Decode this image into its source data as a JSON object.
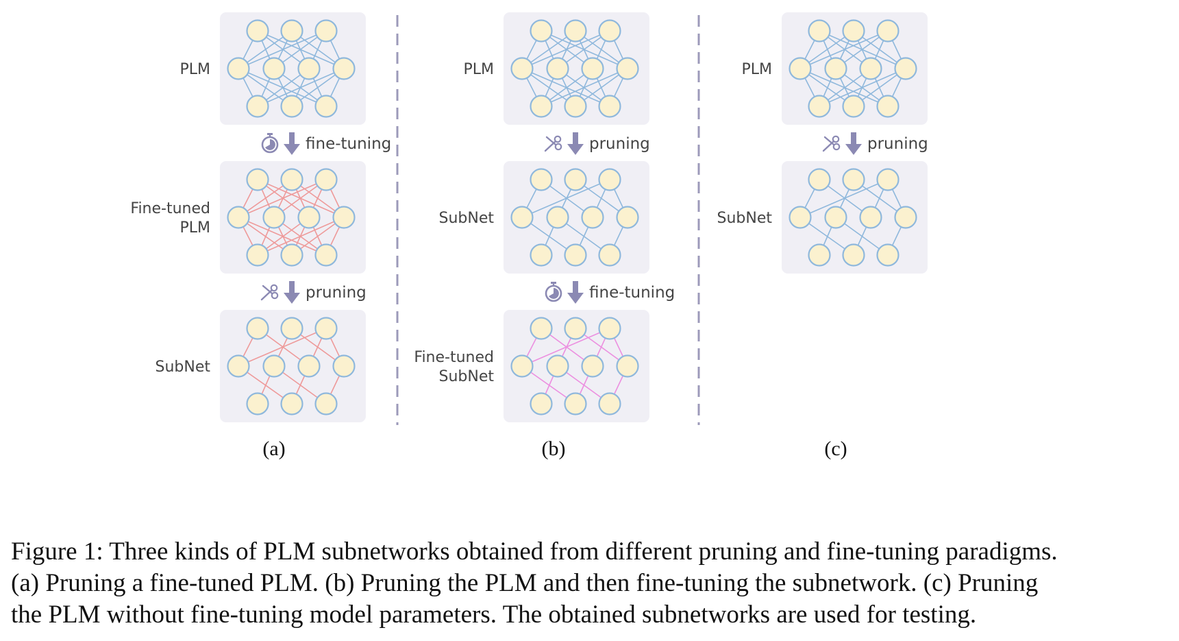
{
  "figure": {
    "panels": [
      {
        "id": "a",
        "label": "(a)",
        "blocks": [
          {
            "label_lines": [
              "PLM"
            ],
            "edge_color": "#8fb8dc",
            "edge_set": "full"
          },
          {
            "label_lines": [
              "Fine-tuned",
              "PLM"
            ],
            "edge_color": "#ee9a9a",
            "edge_set": "full"
          },
          {
            "label_lines": [
              "SubNet"
            ],
            "edge_color": "#ee9a9a",
            "edge_set": "sparse"
          }
        ],
        "steps": [
          {
            "icon": "stopwatch-icon",
            "text": "fine-tuning"
          },
          {
            "icon": "scissors-icon",
            "text": "pruning"
          }
        ]
      },
      {
        "id": "b",
        "label": "(b)",
        "blocks": [
          {
            "label_lines": [
              "PLM"
            ],
            "edge_color": "#8fb8dc",
            "edge_set": "full"
          },
          {
            "label_lines": [
              "SubNet"
            ],
            "edge_color": "#8fb8dc",
            "edge_set": "sparse"
          },
          {
            "label_lines": [
              "Fine-tuned",
              "SubNet"
            ],
            "edge_color": "#ec8fe0",
            "edge_set": "sparse"
          }
        ],
        "steps": [
          {
            "icon": "scissors-icon",
            "text": "pruning"
          },
          {
            "icon": "stopwatch-icon",
            "text": "fine-tuning"
          }
        ]
      },
      {
        "id": "c",
        "label": "(c)",
        "blocks": [
          {
            "label_lines": [
              "PLM"
            ],
            "edge_color": "#8fb8dc",
            "edge_set": "full"
          },
          {
            "label_lines": [
              "SubNet"
            ],
            "edge_color": "#8fb8dc",
            "edge_set": "sparse"
          }
        ],
        "steps": [
          {
            "icon": "scissors-icon",
            "text": "pruning"
          }
        ]
      }
    ],
    "colors": {
      "block_bg": "#f0eff5",
      "node_fill": "#fbf1cf",
      "node_stroke": "#8fb8dc",
      "arrow": "#8b89b3",
      "divider": "#9c9aba",
      "label_text": "#444444"
    }
  },
  "caption": {
    "lines": [
      "Figure 1: Three kinds of PLM subnetworks obtained from different pruning and fine-tuning paradigms.",
      "(a) Pruning a fine-tuned PLM. (b) Pruning the PLM and then fine-tuning the subnetwork. (c) Pruning",
      "the PLM without fine-tuning model parameters. The obtained subnetworks are used for testing."
    ]
  }
}
